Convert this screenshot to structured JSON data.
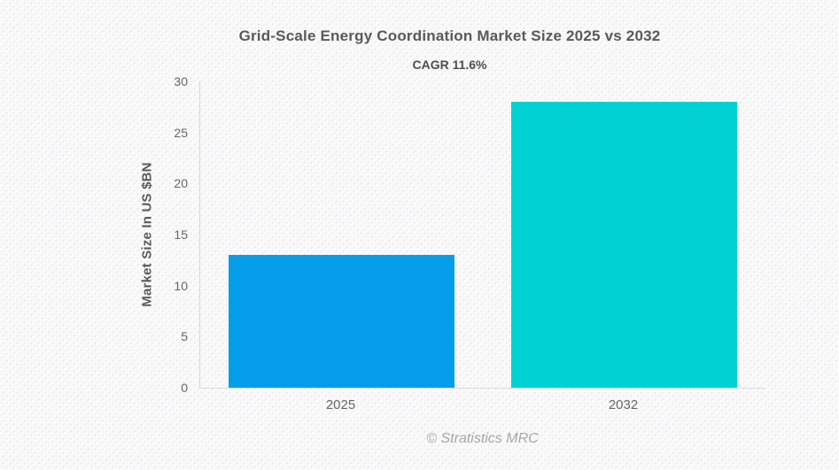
{
  "chart_data": {
    "type": "bar",
    "title": "Grid-Scale Energy Coordination Market Size 2025 vs 2032",
    "subtitle": "CAGR 11.6%",
    "categories": [
      "2025",
      "2032"
    ],
    "values": [
      13,
      28
    ],
    "bar_colors": [
      "#059dea",
      "#00d2d3"
    ],
    "xlabel": "",
    "ylabel": "Market Size In US $BN",
    "ylim": [
      0,
      30
    ],
    "yticks": [
      0,
      5,
      10,
      15,
      20,
      25,
      30
    ],
    "grid": false,
    "legend": false,
    "source": "© Stratistics MRC"
  },
  "colors": {
    "axis_line": "#d9d9d9",
    "title_text": "#595959",
    "tick_text": "#666666",
    "footer_text": "#a6a6a6",
    "background": "#f8f8f9"
  }
}
